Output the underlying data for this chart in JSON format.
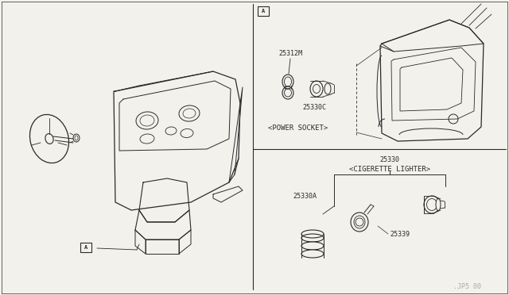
{
  "bg_color": "#f2f1ec",
  "line_color": "#2a2a2a",
  "part_numbers": {
    "p25312M": "25312M",
    "p25330C": "25330C",
    "p25330": "25330",
    "p25330A": "25330A",
    "p25339": "25339"
  },
  "labels": {
    "power_socket": "<POWER SOCKET>",
    "cigarette_lighter": "<CIGERETTE LIGHTER>",
    "box_a": "A",
    "watermark": ".JP5 00"
  }
}
